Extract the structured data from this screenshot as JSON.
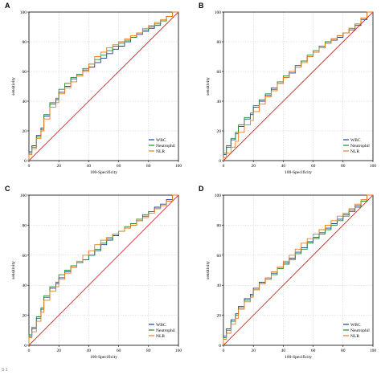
{
  "colors": {
    "WBC": "#1f3f9a",
    "Neutrophil": "#1f8a2e",
    "NLR": "#f07a1a",
    "reference": "#c0392b"
  },
  "footer_text": "S 1",
  "chart_data": [
    {
      "type": "line",
      "panel": "A",
      "xlabel": "100-Specificity",
      "ylabel": "sensitivity",
      "xlim": [
        0,
        100
      ],
      "ylim": [
        0,
        100
      ],
      "xticks": [
        0,
        20,
        40,
        60,
        80,
        100
      ],
      "yticks": [
        0,
        20,
        40,
        60,
        80,
        100
      ],
      "grid": true,
      "legend_position": "bottom-right",
      "legend": [
        "WBC",
        "Neutrophil",
        "NLR"
      ],
      "series": [
        {
          "name": "WBC",
          "x": [
            0,
            2,
            5,
            8,
            10,
            14,
            18,
            20,
            24,
            28,
            32,
            36,
            40,
            44,
            48,
            52,
            56,
            60,
            64,
            68,
            72,
            76,
            80,
            84,
            88,
            92,
            96,
            100
          ],
          "y": [
            0,
            6,
            10,
            17,
            22,
            30,
            38,
            41,
            46,
            50,
            55,
            58,
            61,
            63,
            66,
            69,
            72,
            75,
            77,
            80,
            83,
            85,
            87,
            89,
            91,
            94,
            97,
            100
          ]
        },
        {
          "name": "Neutrophil",
          "x": [
            0,
            2,
            5,
            8,
            10,
            14,
            18,
            20,
            24,
            28,
            32,
            36,
            40,
            44,
            48,
            52,
            56,
            60,
            64,
            68,
            72,
            76,
            80,
            84,
            88,
            92,
            96,
            100
          ],
          "y": [
            0,
            5,
            9,
            16,
            21,
            31,
            39,
            42,
            48,
            52,
            56,
            58,
            62,
            65,
            68,
            71,
            74,
            77,
            79,
            81,
            83,
            86,
            88,
            90,
            92,
            94,
            97,
            100
          ]
        },
        {
          "name": "NLR",
          "x": [
            0,
            2,
            5,
            8,
            10,
            14,
            18,
            20,
            24,
            28,
            32,
            36,
            40,
            44,
            48,
            52,
            56,
            60,
            64,
            68,
            72,
            76,
            80,
            84,
            88,
            92,
            96,
            100
          ],
          "y": [
            0,
            4,
            8,
            15,
            20,
            28,
            36,
            39,
            45,
            49,
            53,
            57,
            60,
            65,
            70,
            73,
            76,
            78,
            80,
            82,
            84,
            86,
            89,
            91,
            93,
            95,
            97,
            100
          ]
        }
      ]
    },
    {
      "type": "line",
      "panel": "B",
      "xlabel": "100-Specificity",
      "ylabel": "sensitivity",
      "xlim": [
        0,
        100
      ],
      "ylim": [
        0,
        100
      ],
      "xticks": [
        0,
        20,
        40,
        60,
        80,
        100
      ],
      "yticks": [
        0,
        20,
        40,
        60,
        80,
        100
      ],
      "grid": true,
      "legend_position": "bottom-right",
      "legend": [
        "WBC",
        "Neutrophil",
        "NLR"
      ],
      "series": [
        {
          "name": "WBC",
          "x": [
            0,
            2,
            5,
            8,
            10,
            14,
            18,
            20,
            24,
            28,
            32,
            36,
            40,
            44,
            48,
            52,
            56,
            60,
            64,
            68,
            72,
            76,
            80,
            84,
            88,
            92,
            96,
            100
          ],
          "y": [
            0,
            4,
            9,
            14,
            18,
            23,
            28,
            31,
            36,
            40,
            44,
            48,
            52,
            56,
            59,
            63,
            67,
            70,
            73,
            76,
            79,
            81,
            83,
            86,
            88,
            91,
            95,
            100
          ]
        },
        {
          "name": "Neutrophil",
          "x": [
            0,
            2,
            5,
            8,
            10,
            14,
            18,
            20,
            24,
            28,
            32,
            36,
            40,
            44,
            48,
            52,
            56,
            60,
            64,
            68,
            72,
            76,
            80,
            84,
            88,
            92,
            96,
            100
          ],
          "y": [
            0,
            5,
            10,
            15,
            19,
            24,
            29,
            32,
            37,
            41,
            45,
            49,
            53,
            57,
            60,
            64,
            67,
            71,
            74,
            77,
            80,
            82,
            84,
            86,
            89,
            92,
            96,
            100
          ]
        },
        {
          "name": "NLR",
          "x": [
            0,
            2,
            5,
            8,
            10,
            14,
            18,
            20,
            24,
            28,
            32,
            36,
            40,
            44,
            48,
            52,
            56,
            60,
            64,
            68,
            72,
            76,
            80,
            84,
            88,
            92,
            96,
            100
          ],
          "y": [
            0,
            2,
            5,
            9,
            13,
            19,
            24,
            27,
            33,
            38,
            43,
            47,
            52,
            56,
            60,
            63,
            66,
            70,
            73,
            76,
            79,
            82,
            84,
            86,
            89,
            92,
            96,
            100
          ]
        }
      ]
    },
    {
      "type": "line",
      "panel": "C",
      "xlabel": "100-Specificity",
      "ylabel": "sensitivity",
      "xlim": [
        0,
        100
      ],
      "ylim": [
        0,
        100
      ],
      "xticks": [
        0,
        20,
        40,
        60,
        80,
        100
      ],
      "yticks": [
        0,
        20,
        40,
        60,
        80,
        100
      ],
      "grid": true,
      "legend_position": "bottom-right",
      "legend": [
        "WBC",
        "Neutrophil",
        "NLR"
      ],
      "series": [
        {
          "name": "WBC",
          "x": [
            0,
            2,
            5,
            8,
            10,
            14,
            18,
            20,
            24,
            28,
            32,
            36,
            40,
            44,
            48,
            52,
            56,
            60,
            64,
            68,
            72,
            76,
            80,
            84,
            88,
            92,
            96,
            100
          ],
          "y": [
            0,
            6,
            11,
            18,
            24,
            32,
            38,
            41,
            45,
            49,
            52,
            55,
            57,
            60,
            63,
            67,
            70,
            73,
            76,
            78,
            80,
            83,
            86,
            89,
            92,
            94,
            97,
            100
          ]
        },
        {
          "name": "Neutrophil",
          "x": [
            0,
            2,
            5,
            8,
            10,
            14,
            18,
            20,
            24,
            28,
            32,
            36,
            40,
            44,
            48,
            52,
            56,
            60,
            64,
            68,
            72,
            76,
            80,
            84,
            88,
            92,
            96,
            100
          ],
          "y": [
            0,
            7,
            12,
            19,
            25,
            33,
            39,
            42,
            47,
            50,
            53,
            55,
            57,
            60,
            64,
            68,
            71,
            74,
            76,
            79,
            81,
            84,
            87,
            89,
            91,
            93,
            96,
            100
          ]
        },
        {
          "name": "NLR",
          "x": [
            0,
            2,
            5,
            8,
            10,
            14,
            18,
            20,
            24,
            28,
            32,
            36,
            40,
            44,
            48,
            52,
            56,
            60,
            64,
            68,
            72,
            76,
            80,
            84,
            88,
            92,
            96,
            100
          ],
          "y": [
            0,
            5,
            9,
            16,
            22,
            30,
            36,
            39,
            44,
            48,
            52,
            56,
            60,
            63,
            67,
            70,
            72,
            74,
            76,
            78,
            80,
            83,
            85,
            88,
            91,
            93,
            96,
            100
          ]
        }
      ]
    },
    {
      "type": "line",
      "panel": "D",
      "xlabel": "100-Specificity",
      "ylabel": "sensitivity",
      "xlim": [
        0,
        100
      ],
      "ylim": [
        0,
        100
      ],
      "xticks": [
        0,
        20,
        40,
        60,
        80,
        100
      ],
      "yticks": [
        0,
        20,
        40,
        60,
        80,
        100
      ],
      "grid": true,
      "legend_position": "bottom-right",
      "legend": [
        "WBC",
        "Neutrophil",
        "NLR"
      ],
      "series": [
        {
          "name": "WBC",
          "x": [
            0,
            2,
            5,
            8,
            10,
            14,
            18,
            20,
            24,
            28,
            32,
            36,
            40,
            44,
            48,
            52,
            56,
            60,
            64,
            68,
            72,
            76,
            80,
            84,
            88,
            92,
            96,
            100
          ],
          "y": [
            0,
            6,
            11,
            17,
            21,
            26,
            31,
            34,
            38,
            42,
            45,
            48,
            52,
            55,
            58,
            62,
            65,
            69,
            72,
            75,
            78,
            81,
            84,
            87,
            90,
            93,
            96,
            100
          ]
        },
        {
          "name": "Neutrophil",
          "x": [
            0,
            2,
            5,
            8,
            10,
            14,
            18,
            20,
            24,
            28,
            32,
            36,
            40,
            44,
            48,
            52,
            56,
            60,
            64,
            68,
            72,
            76,
            80,
            84,
            88,
            92,
            96,
            100
          ],
          "y": [
            0,
            5,
            10,
            16,
            20,
            25,
            30,
            33,
            37,
            41,
            44,
            47,
            51,
            54,
            57,
            61,
            64,
            68,
            71,
            74,
            77,
            80,
            83,
            86,
            89,
            92,
            96,
            100
          ]
        },
        {
          "name": "NLR",
          "x": [
            0,
            2,
            5,
            8,
            10,
            14,
            18,
            20,
            24,
            28,
            32,
            36,
            40,
            44,
            48,
            52,
            56,
            60,
            64,
            68,
            72,
            76,
            80,
            84,
            88,
            92,
            96,
            100
          ],
          "y": [
            0,
            4,
            8,
            14,
            18,
            24,
            29,
            32,
            37,
            41,
            45,
            49,
            52,
            56,
            60,
            64,
            68,
            71,
            74,
            77,
            80,
            83,
            86,
            88,
            91,
            94,
            97,
            100
          ]
        }
      ]
    }
  ]
}
